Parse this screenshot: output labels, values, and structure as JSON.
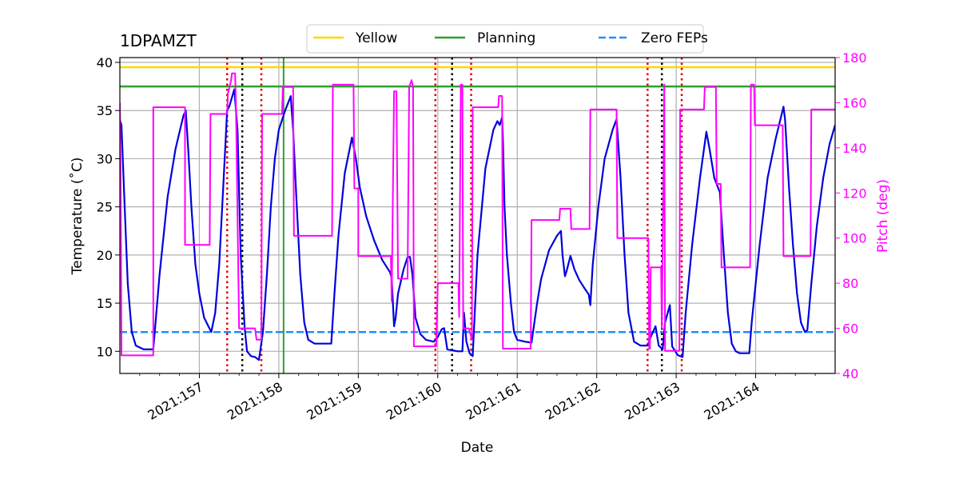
{
  "chart_data": {
    "type": "line",
    "title": "1DPAMZT",
    "xlabel": "Date",
    "ylabel": "Temperature ($^\\circ$C)",
    "ylabel_display": "Temperature (˚C)",
    "y2label": "Pitch (deg)",
    "xlim": [
      156.0,
      165.0
    ],
    "ylim": [
      7.7,
      40.5
    ],
    "y2lim": [
      40,
      180
    ],
    "x_tick_positions": [
      157,
      158,
      159,
      160,
      161,
      162,
      163,
      164
    ],
    "x_tick_labels": [
      "2021:157",
      "2021:158",
      "2021:159",
      "2021:160",
      "2021:161",
      "2021:162",
      "2021:163",
      "2021:164"
    ],
    "y_ticks": [
      10,
      15,
      20,
      25,
      30,
      35,
      40
    ],
    "y2_ticks": [
      40,
      60,
      80,
      100,
      120,
      140,
      160,
      180
    ],
    "grid": true,
    "legend_position": "top-center",
    "legend": [
      {
        "label": "Yellow",
        "color": "#ffd700",
        "style": "solid"
      },
      {
        "label": "Planning",
        "color": "#2ca02c",
        "style": "solid"
      },
      {
        "label": "Zero FEPs",
        "color": "#1e90ff",
        "style": "dashed"
      }
    ],
    "colors": {
      "temperature": "#0000dd",
      "pitch": "#ff00ff",
      "yellow": "#ffd700",
      "planning": "#2ca02c",
      "zero_feps": "#1e90ff",
      "red_markers": "#dd0000",
      "black_markers": "#000000",
      "grid": "#b0b0b0"
    },
    "horizontal_lines": [
      {
        "name": "Yellow",
        "y": 39.5
      },
      {
        "name": "Planning",
        "y": 37.5
      },
      {
        "name": "Zero FEPs",
        "y": 12.0
      }
    ],
    "planning_vertical_line_x": 158.06,
    "red_dotted_vlines_x": [
      157.35,
      157.78,
      159.97,
      160.42,
      162.64,
      163.07
    ],
    "black_dotted_vlines_x": [
      157.54,
      160.18,
      162.82
    ],
    "series": [
      {
        "name": "1DPAMZT temperature",
        "axis": "left",
        "points": [
          [
            156.0,
            34.0
          ],
          [
            156.02,
            33.5
          ],
          [
            156.06,
            25
          ],
          [
            156.1,
            17
          ],
          [
            156.15,
            12
          ],
          [
            156.2,
            10.6
          ],
          [
            156.3,
            10.2
          ],
          [
            156.42,
            10.2
          ],
          [
            156.5,
            18
          ],
          [
            156.6,
            26
          ],
          [
            156.7,
            31
          ],
          [
            156.8,
            34.5
          ],
          [
            156.83,
            35.0
          ],
          [
            156.86,
            31
          ],
          [
            156.9,
            25
          ],
          [
            156.95,
            19
          ],
          [
            157.0,
            16
          ],
          [
            157.06,
            13.5
          ],
          [
            157.15,
            12.0
          ],
          [
            157.2,
            14
          ],
          [
            157.25,
            19
          ],
          [
            157.3,
            27
          ],
          [
            157.35,
            35
          ],
          [
            157.38,
            35.5
          ],
          [
            157.44,
            37.2
          ],
          [
            157.48,
            33
          ],
          [
            157.52,
            20
          ],
          [
            157.57,
            12.5
          ],
          [
            157.6,
            10
          ],
          [
            157.65,
            9.5
          ],
          [
            157.7,
            9.4
          ],
          [
            157.75,
            9.1
          ],
          [
            157.8,
            12
          ],
          [
            157.85,
            18
          ],
          [
            157.9,
            25
          ],
          [
            157.95,
            30
          ],
          [
            158.0,
            33
          ],
          [
            158.08,
            35
          ],
          [
            158.15,
            36.5
          ],
          [
            158.18,
            33
          ],
          [
            158.22,
            26
          ],
          [
            158.27,
            18
          ],
          [
            158.32,
            13
          ],
          [
            158.37,
            11.2
          ],
          [
            158.45,
            10.8
          ],
          [
            158.66,
            10.8
          ],
          [
            158.7,
            16
          ],
          [
            158.75,
            22
          ],
          [
            158.83,
            28.5
          ],
          [
            158.92,
            32.2
          ],
          [
            158.97,
            30
          ],
          [
            159.02,
            27
          ],
          [
            159.1,
            24
          ],
          [
            159.2,
            21.5
          ],
          [
            159.3,
            19.5
          ],
          [
            159.4,
            18.2
          ],
          [
            159.42,
            17.6
          ],
          [
            159.45,
            12.6
          ],
          [
            159.47,
            13.5
          ],
          [
            159.5,
            16
          ],
          [
            159.57,
            18.5
          ],
          [
            159.62,
            19.8
          ],
          [
            159.65,
            19.8
          ],
          [
            159.68,
            18.0
          ],
          [
            159.72,
            13.5
          ],
          [
            159.78,
            11.8
          ],
          [
            159.85,
            11.2
          ],
          [
            159.95,
            11.0
          ],
          [
            160.0,
            11.5
          ],
          [
            160.05,
            12.3
          ],
          [
            160.08,
            12.4
          ],
          [
            160.12,
            10.2
          ],
          [
            160.25,
            10.0
          ],
          [
            160.31,
            10.0
          ],
          [
            160.33,
            14.0
          ],
          [
            160.36,
            11
          ],
          [
            160.4,
            9.8
          ],
          [
            160.44,
            9.5
          ],
          [
            160.5,
            20
          ],
          [
            160.6,
            29
          ],
          [
            160.7,
            33
          ],
          [
            160.75,
            33.9
          ],
          [
            160.78,
            33.5
          ],
          [
            160.81,
            34.3
          ],
          [
            160.82,
            32
          ],
          [
            160.84,
            25
          ],
          [
            160.87,
            20
          ],
          [
            160.92,
            15
          ],
          [
            160.96,
            12
          ],
          [
            161.0,
            11.2
          ],
          [
            161.1,
            11.0
          ],
          [
            161.18,
            10.9
          ],
          [
            161.25,
            15
          ],
          [
            161.3,
            17.5
          ],
          [
            161.4,
            20.5
          ],
          [
            161.5,
            22
          ],
          [
            161.55,
            22.5
          ],
          [
            161.57,
            20
          ],
          [
            161.6,
            17.8
          ],
          [
            161.62,
            18.3
          ],
          [
            161.67,
            19.9
          ],
          [
            161.72,
            18.5
          ],
          [
            161.78,
            17.4
          ],
          [
            161.85,
            16.5
          ],
          [
            161.9,
            15.9
          ],
          [
            161.92,
            14.8
          ],
          [
            161.95,
            19
          ],
          [
            162.02,
            25
          ],
          [
            162.1,
            30
          ],
          [
            162.2,
            33
          ],
          [
            162.25,
            34.1
          ],
          [
            162.3,
            28
          ],
          [
            162.35,
            20
          ],
          [
            162.4,
            14
          ],
          [
            162.47,
            11.0
          ],
          [
            162.55,
            10.6
          ],
          [
            162.64,
            10.6
          ],
          [
            162.68,
            11.5
          ],
          [
            162.74,
            12.6
          ],
          [
            162.78,
            10.6
          ],
          [
            162.83,
            10.2
          ],
          [
            162.86,
            13.0
          ],
          [
            162.92,
            14.8
          ],
          [
            162.95,
            10.5
          ],
          [
            163.02,
            9.6
          ],
          [
            163.08,
            9.4
          ],
          [
            163.12,
            14
          ],
          [
            163.2,
            21
          ],
          [
            163.3,
            28
          ],
          [
            163.38,
            32.8
          ],
          [
            163.42,
            31
          ],
          [
            163.48,
            28
          ],
          [
            163.55,
            26.5
          ],
          [
            163.6,
            20
          ],
          [
            163.65,
            14
          ],
          [
            163.7,
            10.8
          ],
          [
            163.75,
            10.0
          ],
          [
            163.8,
            9.8
          ],
          [
            163.92,
            9.8
          ],
          [
            163.95,
            13
          ],
          [
            164.05,
            21
          ],
          [
            164.15,
            28
          ],
          [
            164.25,
            32
          ],
          [
            164.35,
            35.4
          ],
          [
            164.37,
            34.0
          ],
          [
            164.42,
            27
          ],
          [
            164.47,
            21
          ],
          [
            164.52,
            16
          ],
          [
            164.57,
            13
          ],
          [
            164.62,
            12.0
          ],
          [
            164.65,
            12.2
          ],
          [
            164.7,
            17
          ],
          [
            164.77,
            23
          ],
          [
            164.85,
            28
          ],
          [
            164.93,
            31.5
          ],
          [
            165.0,
            33.5
          ]
        ]
      },
      {
        "name": "Pitch",
        "axis": "right",
        "points": [
          [
            156.0,
            160
          ],
          [
            156.01,
            125
          ],
          [
            156.02,
            48
          ],
          [
            156.41,
            48
          ],
          [
            156.42,
            48
          ],
          [
            156.42,
            158
          ],
          [
            156.82,
            158
          ],
          [
            156.82,
            97
          ],
          [
            157.13,
            97
          ],
          [
            157.14,
            155
          ],
          [
            157.35,
            155
          ],
          [
            157.36,
            164
          ],
          [
            157.4,
            170
          ],
          [
            157.41,
            173
          ],
          [
            157.45,
            173
          ],
          [
            157.46,
            160
          ],
          [
            157.5,
            60
          ],
          [
            157.7,
            60
          ],
          [
            157.72,
            55
          ],
          [
            157.78,
            55
          ],
          [
            157.79,
            155
          ],
          [
            158.04,
            155
          ],
          [
            158.05,
            167
          ],
          [
            158.18,
            167
          ],
          [
            158.19,
            101
          ],
          [
            158.67,
            101
          ],
          [
            158.68,
            168
          ],
          [
            158.94,
            168
          ],
          [
            158.95,
            122
          ],
          [
            159.0,
            122
          ],
          [
            159.0,
            92
          ],
          [
            159.41,
            92
          ],
          [
            159.42,
            72
          ],
          [
            159.45,
            165
          ],
          [
            159.48,
            165
          ],
          [
            159.5,
            82
          ],
          [
            159.62,
            82
          ],
          [
            159.64,
            167
          ],
          [
            159.67,
            170
          ],
          [
            159.69,
            167
          ],
          [
            159.7,
            52
          ],
          [
            159.96,
            52
          ],
          [
            159.98,
            52
          ],
          [
            160.0,
            80
          ],
          [
            160.26,
            80
          ],
          [
            160.27,
            65
          ],
          [
            160.29,
            168
          ],
          [
            160.31,
            168
          ],
          [
            160.32,
            60
          ],
          [
            160.39,
            60
          ],
          [
            160.43,
            55
          ],
          [
            160.44,
            158
          ],
          [
            160.76,
            158
          ],
          [
            160.77,
            163
          ],
          [
            160.81,
            163
          ],
          [
            160.82,
            51
          ],
          [
            161.17,
            51
          ],
          [
            161.18,
            108
          ],
          [
            161.53,
            108
          ],
          [
            161.54,
            113
          ],
          [
            161.67,
            113
          ],
          [
            161.68,
            104
          ],
          [
            161.91,
            104
          ],
          [
            161.92,
            157
          ],
          [
            162.25,
            157
          ],
          [
            162.26,
            100
          ],
          [
            162.65,
            100
          ],
          [
            162.66,
            51
          ],
          [
            162.67,
            51
          ],
          [
            162.68,
            87
          ],
          [
            162.81,
            87
          ],
          [
            162.82,
            60
          ],
          [
            162.85,
            168
          ],
          [
            162.86,
            50
          ],
          [
            163.04,
            50
          ],
          [
            163.05,
            157
          ],
          [
            163.35,
            157
          ],
          [
            163.36,
            167
          ],
          [
            163.5,
            167
          ],
          [
            163.51,
            124
          ],
          [
            163.56,
            124
          ],
          [
            163.57,
            87
          ],
          [
            163.93,
            87
          ],
          [
            163.94,
            168
          ],
          [
            163.98,
            168
          ],
          [
            163.99,
            150
          ],
          [
            164.34,
            150
          ],
          [
            164.35,
            92
          ],
          [
            164.69,
            92
          ],
          [
            164.7,
            157
          ],
          [
            165.0,
            157
          ]
        ]
      }
    ]
  }
}
